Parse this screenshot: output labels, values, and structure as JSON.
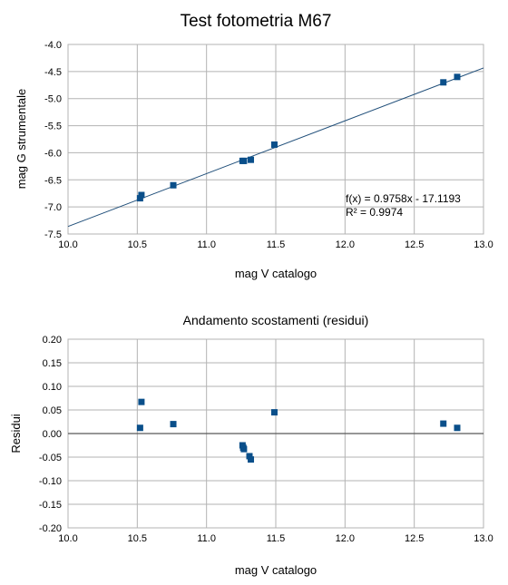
{
  "chart_data": [
    {
      "type": "scatter",
      "title": "Test fotometria M67",
      "xlabel": "mag V catalogo",
      "ylabel": "mag G strumentale",
      "xlim": [
        10.0,
        13.0
      ],
      "ylim": [
        -7.5,
        -4.0
      ],
      "xticks": [
        "10.0",
        "10.5",
        "11.0",
        "11.5",
        "12.0",
        "12.5",
        "13.0"
      ],
      "yticks": [
        "-4.0",
        "-4.5",
        "-5.0",
        "-5.5",
        "-6.0",
        "-6.5",
        "-7.0",
        "-7.5"
      ],
      "grid": true,
      "x": [
        10.52,
        10.53,
        10.76,
        11.26,
        11.27,
        11.32,
        11.49,
        12.71,
        12.81
      ],
      "y": [
        -6.84,
        -6.78,
        -6.6,
        -6.15,
        -6.15,
        -6.13,
        -5.85,
        -4.7,
        -4.6
      ],
      "trendline": {
        "slope": 0.9758,
        "intercept": -17.1193
      },
      "annotation": {
        "line1": "f(x) = 0.9758x - 17.1193",
        "line2": "R² = 0.9974"
      },
      "marker_color": "#0a4f8a",
      "line_color": "#1f4e79"
    },
    {
      "type": "scatter",
      "title": "Andamento scostamenti (residui)",
      "xlabel": "mag V catalogo",
      "ylabel": "Residui",
      "xlim": [
        10.0,
        13.0
      ],
      "ylim": [
        -0.2,
        0.2
      ],
      "xticks": [
        "10.0",
        "10.5",
        "11.0",
        "11.5",
        "12.0",
        "12.5",
        "13.0"
      ],
      "yticks": [
        "0.20",
        "0.15",
        "0.10",
        "0.05",
        "0.00",
        "-0.05",
        "-0.10",
        "-0.15",
        "-0.20"
      ],
      "grid": true,
      "x": [
        10.52,
        10.53,
        10.76,
        11.26,
        11.265,
        11.27,
        11.31,
        11.32,
        11.49,
        12.71,
        12.81
      ],
      "y": [
        0.012,
        0.067,
        0.02,
        -0.025,
        -0.03,
        -0.033,
        -0.048,
        -0.055,
        0.045,
        0.021,
        0.012
      ],
      "zero_line": true,
      "marker_color": "#0a4f8a"
    }
  ]
}
